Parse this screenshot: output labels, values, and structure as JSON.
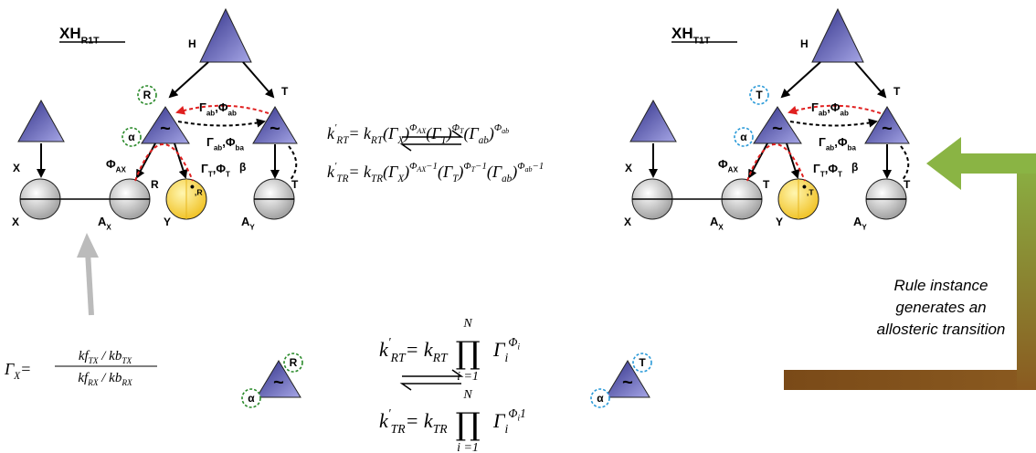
{
  "panels": [
    {
      "title": [
        "XH",
        "R1T"
      ],
      "h": "H",
      "x": "X",
      "state": "R",
      "alpha": "α",
      "beta": "β",
      "tilde": "~",
      "top_label": [
        "Γ",
        "ab",
        ",Φ",
        "ab"
      ],
      "mid_label": [
        "Γ",
        "ab",
        ",Φ",
        "ba"
      ],
      "phi_ax": [
        "Φ",
        "AX"
      ],
      "gt": [
        "Γ",
        "T",
        ",Φ",
        "T"
      ],
      "ligand": [
        "•",
        ",R"
      ],
      "ax_state": "R",
      "t_state": "T",
      "t_label": "T",
      "x_circle": "X",
      "ax": [
        "A",
        "X"
      ],
      "y": "Y",
      "ay": [
        "A",
        "Y"
      ],
      "ring_color": "#2a8a2a"
    },
    {
      "title": [
        "XH",
        "T1T"
      ],
      "h": "H",
      "x": "X",
      "state": "T",
      "alpha": "α",
      "beta": "β",
      "tilde": "~",
      "top_label": [
        "Γ",
        "ab",
        ",Φ",
        "ab"
      ],
      "mid_label": [
        "Γ",
        "ab",
        ",Φ",
        "ba"
      ],
      "phi_ax": [
        "Φ",
        "AX"
      ],
      "gt": [
        "Γ",
        "T",
        ",Φ",
        "T"
      ],
      "ligand": [
        "•",
        ",T"
      ],
      "ax_state": "T",
      "t_state": "T",
      "t_label": "T",
      "x_circle": "X",
      "ax": [
        "A",
        "X"
      ],
      "y": "Y",
      "ay": [
        "A",
        "Y"
      ],
      "ring_color": "#2a9ad8"
    }
  ],
  "eq1": [
    "k",
    "′",
    "RT",
    "= k",
    "RT",
    "(Γ",
    "X",
    ")",
    "Φ",
    "AX",
    "(Γ",
    "T",
    ")",
    "Φ",
    "T",
    "(Γ",
    "ab",
    ")",
    "Φ",
    "ab"
  ],
  "eq2": [
    "k",
    "′",
    "TR",
    "= k",
    "TR",
    "(Γ",
    "X",
    ")",
    "Φ",
    "AX",
    "−1",
    "(Γ",
    "T",
    ")",
    "Φ",
    "T",
    "−1",
    "(Γ",
    "ab",
    ")",
    "Φ",
    "ab",
    "−1"
  ],
  "eq3": {
    "lhs": [
      "k",
      "′",
      "RT",
      "= k",
      "RT"
    ],
    "prod": "∏",
    "upper": "N",
    "lower": "i =1",
    "term": [
      "Γ",
      "i",
      "Φ",
      "i"
    ]
  },
  "eq4": {
    "lhs": [
      "k",
      "′",
      "TR",
      "= k",
      "TR"
    ],
    "prod": "∏",
    "upper": "N",
    "lower": "i =1",
    "term": [
      "Γ",
      "i",
      "Φ",
      "i",
      "1"
    ]
  },
  "gamma_x": {
    "lhs": [
      "Γ",
      "X",
      "="
    ],
    "numer": [
      "kf",
      "TX",
      " / kb",
      "TX"
    ],
    "denom": [
      "kf",
      "RX",
      " / kb",
      "RX"
    ]
  },
  "bottom": [
    {
      "state": "R",
      "alpha": "α",
      "tilde": "~",
      "ring_color": "#2a8a2a"
    },
    {
      "state": "T",
      "alpha": "α",
      "tilde": "~",
      "ring_color": "#2a9ad8"
    }
  ],
  "rule_text": [
    "Rule instance",
    "generates an",
    "allosteric transition"
  ]
}
